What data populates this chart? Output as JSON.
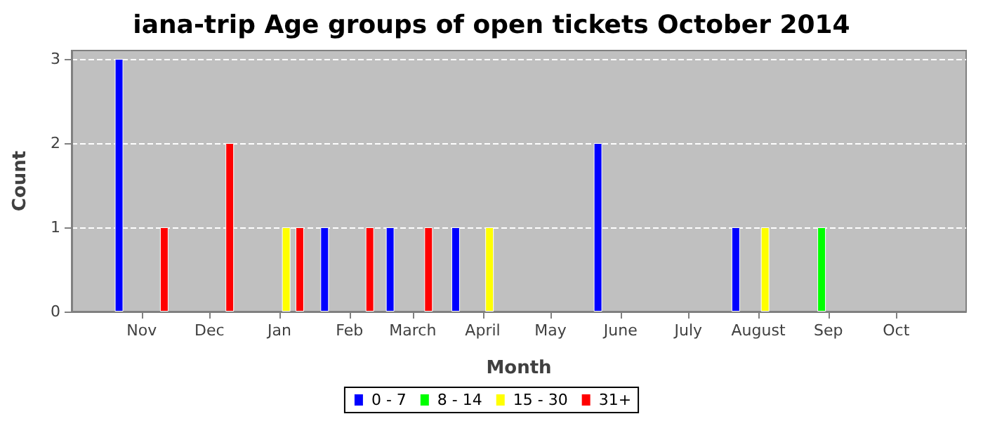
{
  "chart_data": {
    "type": "bar",
    "title": "iana-trip Age groups of open tickets October 2014",
    "xlabel": "Month",
    "ylabel": "Count",
    "xlim": [
      "2013-10-01",
      "2014-11-01"
    ],
    "xticks": [
      {
        "value": "2013-11-01",
        "label": "Nov"
      },
      {
        "value": "2013-12-01",
        "label": "Dec"
      },
      {
        "value": "2014-01-01",
        "label": "Jan"
      },
      {
        "value": "2014-02-01",
        "label": "Feb"
      },
      {
        "value": "2014-03-01",
        "label": "March"
      },
      {
        "value": "2014-04-01",
        "label": "April"
      },
      {
        "value": "2014-05-01",
        "label": "May"
      },
      {
        "value": "2014-06-01",
        "label": "June"
      },
      {
        "value": "2014-07-01",
        "label": "July"
      },
      {
        "value": "2014-08-01",
        "label": "August"
      },
      {
        "value": "2014-09-01",
        "label": "Sep"
      },
      {
        "value": "2014-10-01",
        "label": "Oct"
      }
    ],
    "ylim": [
      0,
      3.1
    ],
    "yticks": [
      0,
      1,
      2,
      3
    ],
    "grid": "y",
    "legend": "bottom",
    "series": [
      {
        "name": "0 - 7",
        "color": "#0000ff",
        "x": [
          "2013-10-22",
          "2014-01-21",
          "2014-02-19",
          "2014-03-20",
          "2014-05-22",
          "2014-07-22"
        ],
        "values": [
          3,
          1,
          1,
          1,
          2,
          1
        ]
      },
      {
        "name": "8 - 14",
        "color": "#00ff00",
        "x": [
          "2014-08-29"
        ],
        "values": [
          1
        ]
      },
      {
        "name": "15 - 30",
        "color": "#ffff00",
        "x": [
          "2014-01-04",
          "2014-04-04",
          "2014-08-04"
        ],
        "values": [
          1,
          1,
          1
        ]
      },
      {
        "name": "31+",
        "color": "#ff0000",
        "x": [
          "2013-11-11",
          "2013-12-10",
          "2014-01-10",
          "2014-02-10",
          "2014-03-08"
        ],
        "values": [
          1,
          2,
          1,
          1,
          1
        ]
      }
    ]
  }
}
